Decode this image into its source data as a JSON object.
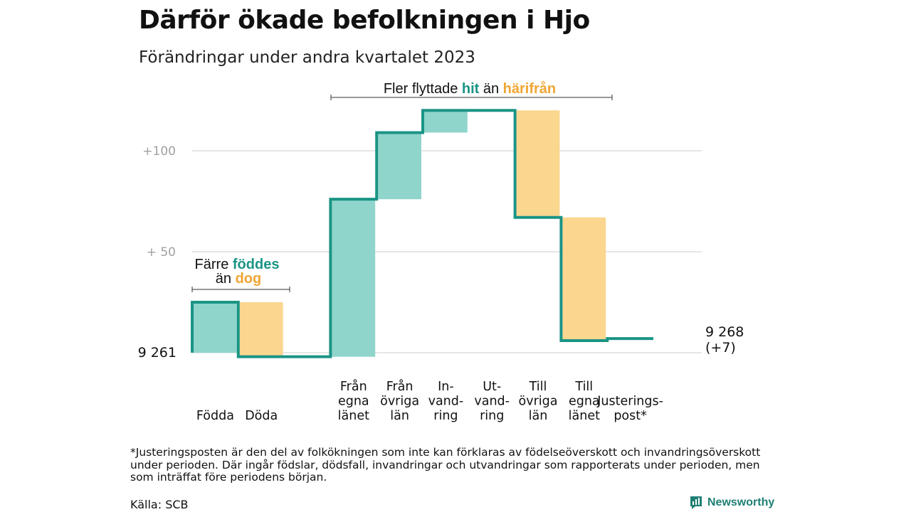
{
  "header": {
    "title": "Därför ökade befolkningen i Hjo",
    "subtitle": "Förändringar under andra kvartalet 2023"
  },
  "colors": {
    "inflow": "#8fd5cb",
    "outflow": "#fad68f",
    "line": "#1a9485",
    "grid": "#dddddd",
    "tick": "#a0a0a0",
    "accent_teal": "#1a9485",
    "accent_orange": "#f0a534"
  },
  "annotations": {
    "births_deaths": {
      "line1": "Färre",
      "hl1": "föddes",
      "line2a": "än",
      "hl2": "dog"
    },
    "migration": {
      "text1": "Fler flyttade",
      "hl1": "hit",
      "text2": "än",
      "hl2": "härifrån"
    }
  },
  "chart_data": {
    "type": "waterfall",
    "baseline_label": "9  261",
    "end_label_line1": "9 268",
    "end_label_line2": "(+7)",
    "yticks": [
      {
        "value": 50,
        "label": "+  50"
      },
      {
        "value": 100,
        "label": "+100"
      }
    ],
    "ylim": [
      -5,
      125
    ],
    "steps": [
      {
        "label": [
          "Födda"
        ],
        "start": 0,
        "end": 25,
        "kind": "in"
      },
      {
        "label": [
          "Döda"
        ],
        "start": 25,
        "end": -2,
        "kind": "out"
      },
      {
        "label": [
          ""
        ],
        "start": -2,
        "end": -2,
        "kind": "none"
      },
      {
        "label": [
          "Från",
          "egna",
          "länet"
        ],
        "start": -2,
        "end": 76,
        "kind": "in"
      },
      {
        "label": [
          "Från",
          "övriga",
          "län"
        ],
        "start": 76,
        "end": 109,
        "kind": "in"
      },
      {
        "label": [
          "In-",
          "vand-",
          "ring"
        ],
        "start": 109,
        "end": 120,
        "kind": "in"
      },
      {
        "label": [
          "Ut-",
          "vand-",
          "ring"
        ],
        "start": 120,
        "end": 120,
        "kind": "none"
      },
      {
        "label": [
          "Till",
          "övriga",
          "län"
        ],
        "start": 120,
        "end": 67,
        "kind": "out"
      },
      {
        "label": [
          "Till",
          "egna",
          "länet"
        ],
        "start": 67,
        "end": 6,
        "kind": "out"
      },
      {
        "label": [
          "Justerings-",
          "post*"
        ],
        "start": 6,
        "end": 7,
        "kind": "none"
      }
    ]
  },
  "footer": {
    "footnote": "*Justeringsposten är den del av folkökningen som inte kan förklaras av födelseöverskott och invandringsöverskott under perioden. Där ingår födslar, dödsfall, invandringar och utvandringar som rapporterats under perioden, men som inträffat före periodens början.",
    "source": "Källa: SCB",
    "brand": "Newsworthy"
  }
}
